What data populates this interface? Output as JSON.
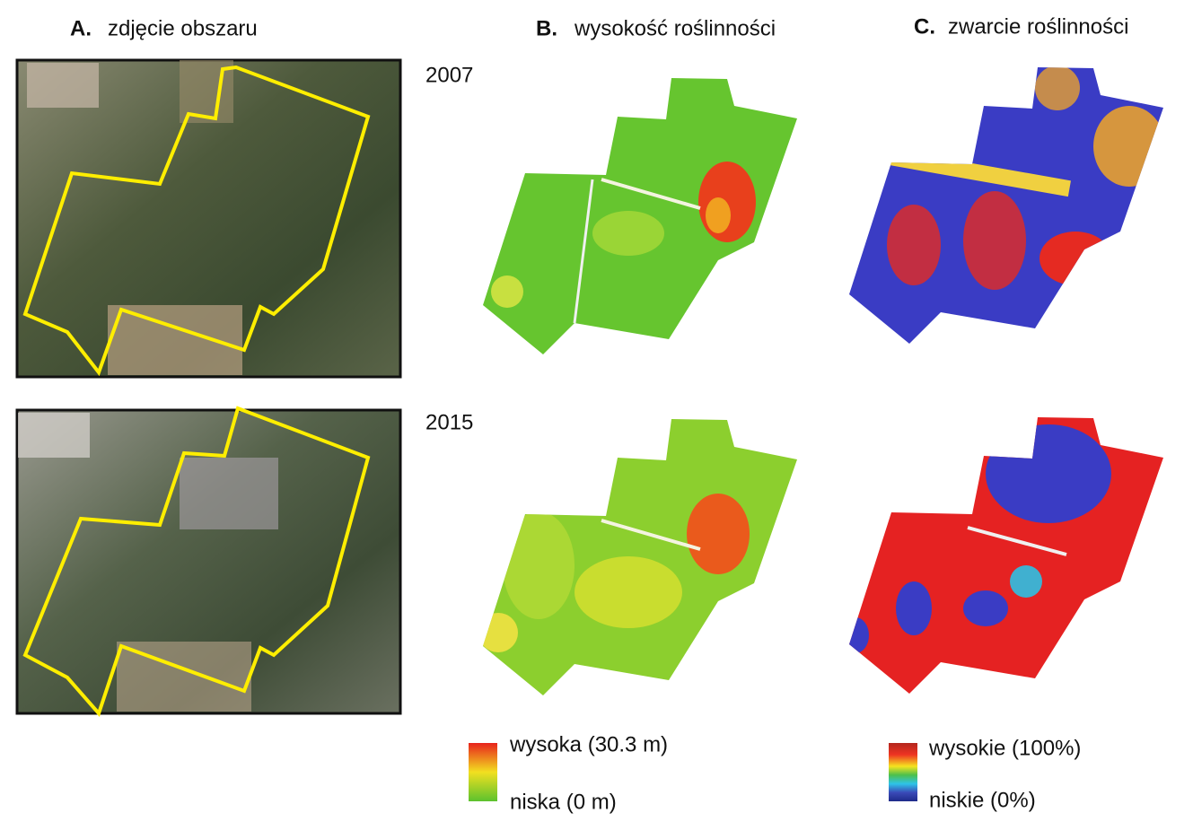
{
  "columns": [
    {
      "letter": "A.",
      "title": "zdjęcie obszaru"
    },
    {
      "letter": "B.",
      "title": "wysokość roślinności"
    },
    {
      "letter": "C.",
      "title": "zwarcie roślinności"
    }
  ],
  "years": [
    "2007",
    "2015"
  ],
  "legend_height": {
    "high": "wysoka (30.3 m)",
    "low": "niska (0 m)"
  },
  "legend_density": {
    "high": "wysokie (100%)",
    "low": "niskie (0%)"
  }
}
